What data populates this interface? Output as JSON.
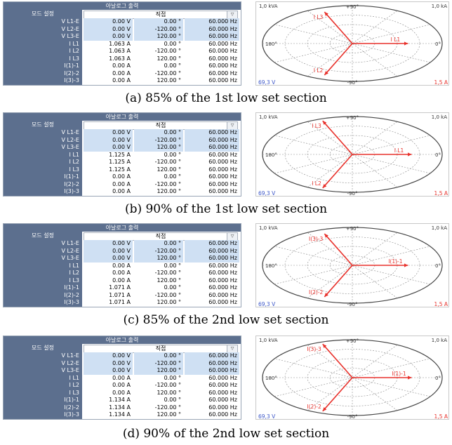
{
  "header_title": "아날로그 출력",
  "mode_label": "모드 설정",
  "mode_value": "직접",
  "dropdown_icon": "chevron-down-icon",
  "colors": {
    "header": "#5c6f8e",
    "voltage_row": "#cfe0f3",
    "phasor": "#e8312b",
    "voltage_axis": "#3a55c8"
  },
  "panels": [
    {
      "caption": "(a) 85% of the 1st low set section",
      "rows": [
        {
          "name": "V L1-E",
          "mag": "0.00 V",
          "ang": "0.00 °",
          "freq": "60.000 Hz"
        },
        {
          "name": "V L2-E",
          "mag": "0.00 V",
          "ang": "-120.00 °",
          "freq": "60.000 Hz"
        },
        {
          "name": "V L3-E",
          "mag": "0.00 V",
          "ang": "120.00 °",
          "freq": "60.000 Hz"
        },
        {
          "name": "I L1",
          "mag": "1.063 A",
          "ang": "0.00 °",
          "freq": "60.000 Hz"
        },
        {
          "name": "I L2",
          "mag": "1.063 A",
          "ang": "-120.00 °",
          "freq": "60.000 Hz"
        },
        {
          "name": "I L3",
          "mag": "1.063 A",
          "ang": "120.00 °",
          "freq": "60.000 Hz"
        },
        {
          "name": "I(1)-1",
          "mag": "0.00 A",
          "ang": "0.00 °",
          "freq": "60.000 Hz"
        },
        {
          "name": "I(2)-2",
          "mag": "0.00 A",
          "ang": "-120.00 °",
          "freq": "60.000 Hz"
        },
        {
          "name": "I(3)-3",
          "mag": "0.00 A",
          "ang": "120.00 °",
          "freq": "60.000 Hz"
        }
      ],
      "polar": {
        "top_left": "1,0 kVA",
        "top_right": "1,0 kA",
        "ang_90": "+90°",
        "ang_180": "180°",
        "ang_0": "0°",
        "ang_m90": "-90°",
        "bottom_left": "69,3 V",
        "bottom_right": "1,5 A",
        "phasors": [
          {
            "label": "I L1",
            "angle": 0,
            "len": 0.62
          },
          {
            "label": "I L2",
            "angle": -120,
            "len": 0.62
          },
          {
            "label": "I L3",
            "angle": 120,
            "len": 0.62
          }
        ]
      }
    },
    {
      "caption": "(b) 90% of the 1st low set section",
      "rows": [
        {
          "name": "V L1-E",
          "mag": "0.00 V",
          "ang": "0.00 °",
          "freq": "60.000 Hz"
        },
        {
          "name": "V L2-E",
          "mag": "0.00 V",
          "ang": "-120.00 °",
          "freq": "60.000 Hz"
        },
        {
          "name": "V L3-E",
          "mag": "0.00 V",
          "ang": "120.00 °",
          "freq": "60.000 Hz"
        },
        {
          "name": "I L1",
          "mag": "1.125 A",
          "ang": "0.00 °",
          "freq": "60.000 Hz"
        },
        {
          "name": "I L2",
          "mag": "1.125 A",
          "ang": "-120.00 °",
          "freq": "60.000 Hz"
        },
        {
          "name": "I L3",
          "mag": "1.125 A",
          "ang": "120.00 °",
          "freq": "60.000 Hz"
        },
        {
          "name": "I(1)-1",
          "mag": "0.00 A",
          "ang": "0.00 °",
          "freq": "60.000 Hz"
        },
        {
          "name": "I(2)-2",
          "mag": "0.00 A",
          "ang": "-120.00 °",
          "freq": "60.000 Hz"
        },
        {
          "name": "I(3)-3",
          "mag": "0.00 A",
          "ang": "120.00 °",
          "freq": "60.000 Hz"
        }
      ],
      "polar": {
        "top_left": "1,0 kVA",
        "top_right": "1,0 kA",
        "ang_90": "+90°",
        "ang_180": "180°",
        "ang_0": "0°",
        "ang_m90": "-90°",
        "bottom_left": "69,3 V",
        "bottom_right": "1,5 A",
        "phasors": [
          {
            "label": "I L1",
            "angle": 0,
            "len": 0.66
          },
          {
            "label": "I L2",
            "angle": -120,
            "len": 0.66
          },
          {
            "label": "I L3",
            "angle": 120,
            "len": 0.66
          }
        ]
      }
    },
    {
      "caption": "(c) 85% of the 2nd low set section",
      "rows": [
        {
          "name": "V L1-E",
          "mag": "0.00 V",
          "ang": "0.00 °",
          "freq": "60.000 Hz"
        },
        {
          "name": "V L2-E",
          "mag": "0.00 V",
          "ang": "-120.00 °",
          "freq": "60.000 Hz"
        },
        {
          "name": "V L3-E",
          "mag": "0.00 V",
          "ang": "120.00 °",
          "freq": "60.000 Hz"
        },
        {
          "name": "I L1",
          "mag": "0.00 A",
          "ang": "0.00 °",
          "freq": "60.000 Hz"
        },
        {
          "name": "I L2",
          "mag": "0.00 A",
          "ang": "-120.00 °",
          "freq": "60.000 Hz"
        },
        {
          "name": "I L3",
          "mag": "0.00 A",
          "ang": "120.00 °",
          "freq": "60.000 Hz"
        },
        {
          "name": "I(1)-1",
          "mag": "1.071 A",
          "ang": "0.00 °",
          "freq": "60.000 Hz"
        },
        {
          "name": "I(2)-2",
          "mag": "1.071 A",
          "ang": "-120.00 °",
          "freq": "60.000 Hz"
        },
        {
          "name": "I(3)-3",
          "mag": "1.071 A",
          "ang": "120.00 °",
          "freq": "60.000 Hz"
        }
      ],
      "polar": {
        "top_left": "1,0 kVA",
        "top_right": "1,0 kA",
        "ang_90": "+90°",
        "ang_180": "180°",
        "ang_0": "0°",
        "ang_m90": "-90°",
        "bottom_left": "69,3 V",
        "bottom_right": "1,5 A",
        "phasors": [
          {
            "label": "I(1)-1",
            "angle": 0,
            "len": 0.62
          },
          {
            "label": "I(2)-2",
            "angle": -120,
            "len": 0.62
          },
          {
            "label": "I(3)-3",
            "angle": 120,
            "len": 0.62
          }
        ]
      }
    },
    {
      "caption": "(d) 90% of the 2nd low set section",
      "rows": [
        {
          "name": "V L1-E",
          "mag": "0.00 V",
          "ang": "0.00 °",
          "freq": "60.000 Hz"
        },
        {
          "name": "V L2-E",
          "mag": "0.00 V",
          "ang": "-120.00 °",
          "freq": "60.000 Hz"
        },
        {
          "name": "V L3-E",
          "mag": "0.00 V",
          "ang": "120.00 °",
          "freq": "60.000 Hz"
        },
        {
          "name": "I L1",
          "mag": "0.00 A",
          "ang": "0.00 °",
          "freq": "60.000 Hz"
        },
        {
          "name": "I L2",
          "mag": "0.00 A",
          "ang": "-120.00 °",
          "freq": "60.000 Hz"
        },
        {
          "name": "I L3",
          "mag": "0.00 A",
          "ang": "120.00 °",
          "freq": "60.000 Hz"
        },
        {
          "name": "I(1)-1",
          "mag": "1.134 A",
          "ang": "0.00 °",
          "freq": "60.000 Hz"
        },
        {
          "name": "I(2)-2",
          "mag": "1.134 A",
          "ang": "-120.00 °",
          "freq": "60.000 Hz"
        },
        {
          "name": "I(3)-3",
          "mag": "1.134 A",
          "ang": "120.00 °",
          "freq": "60.000 Hz"
        }
      ],
      "polar": {
        "top_left": "1,0 kVA",
        "top_right": "1,0 kA",
        "ang_90": "+90°",
        "ang_180": "180°",
        "ang_0": "0°",
        "ang_m90": "-90°",
        "bottom_left": "69,3 V",
        "bottom_right": "1,5 A",
        "phasors": [
          {
            "label": "I(1)-1",
            "angle": 0,
            "len": 0.66
          },
          {
            "label": "I(2)-2",
            "angle": -120,
            "len": 0.66
          },
          {
            "label": "I(3)-3",
            "angle": 120,
            "len": 0.66
          }
        ]
      }
    }
  ]
}
